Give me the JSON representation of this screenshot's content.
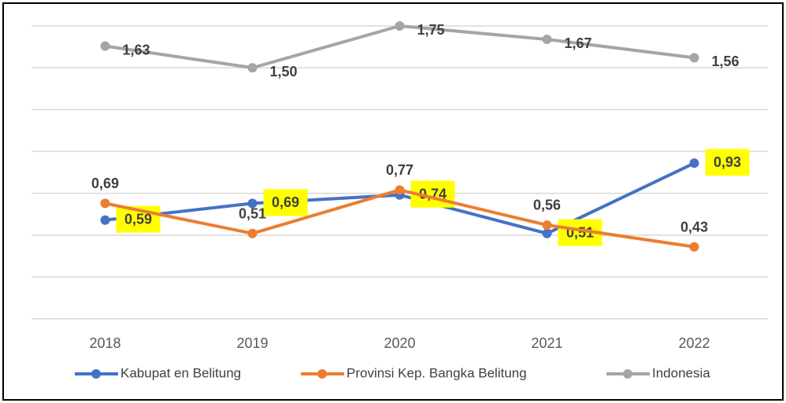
{
  "chart_data": {
    "type": "line",
    "categories": [
      "2018",
      "2019",
      "2020",
      "2021",
      "2022"
    ],
    "series": [
      {
        "name": "Kabupat en Belitung",
        "color": "#4472c4",
        "values": [
          0.59,
          0.69,
          0.74,
          0.51,
          0.93
        ],
        "value_labels": [
          "0,59",
          "0,69",
          "0,74",
          "0,51",
          "0,93"
        ]
      },
      {
        "name": "Provinsi Kep. Bangka Belitung",
        "color": "#ed7d31",
        "values": [
          0.69,
          0.51,
          0.77,
          0.56,
          0.43
        ],
        "value_labels": [
          "0,69",
          "0,51",
          "0,77",
          "0,56",
          "0,43"
        ]
      },
      {
        "name": "Indonesia",
        "color": "#a5a5a5",
        "values": [
          1.63,
          1.5,
          1.75,
          1.67,
          1.56
        ],
        "value_labels": [
          "1,63",
          "1,50",
          "1,75",
          "1,67",
          "1,56"
        ]
      }
    ],
    "ylim": [
      0,
      1.75
    ],
    "yticks": [
      0,
      0.25,
      0.5,
      0.75,
      1,
      1.25,
      1.5,
      1.75
    ],
    "grid": true,
    "legend": "bottom"
  }
}
